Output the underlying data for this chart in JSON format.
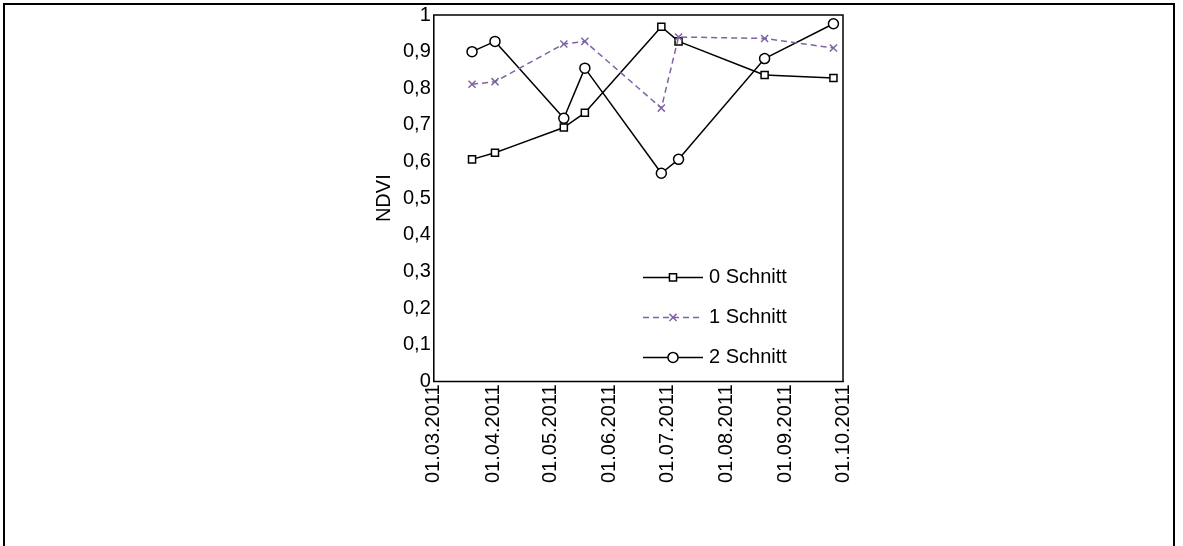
{
  "chart_data": {
    "type": "line",
    "ylabel": "NDVI",
    "x": [
      "2011-03-21",
      "2011-04-02",
      "2011-05-08",
      "2011-05-19",
      "2011-06-28",
      "2011-07-07",
      "2011-08-21",
      "2011-09-26"
    ],
    "series": [
      {
        "name": "0 Schnitt",
        "color": "#000000",
        "marker": "square",
        "line_style": "solid",
        "values": [
          0.606,
          0.624,
          0.693,
          0.733,
          0.968,
          0.928,
          0.836,
          0.828
        ]
      },
      {
        "name": "1 Schnitt",
        "color": "#8064a2",
        "marker": "cross",
        "line_style": "dashed",
        "values": [
          0.811,
          0.818,
          0.921,
          0.928,
          0.746,
          0.94,
          0.936,
          0.91
        ]
      },
      {
        "name": "2 Schnitt",
        "color": "#000000",
        "marker": "circle",
        "line_style": "solid",
        "values": [
          0.9,
          0.928,
          0.718,
          0.855,
          0.568,
          0.606,
          0.881,
          0.976
        ]
      }
    ],
    "xlim": [
      "2011-03-01",
      "2011-10-01"
    ],
    "xticks": [
      {
        "value": "2011-03-01",
        "label": "01.03.2011"
      },
      {
        "value": "2011-04-01",
        "label": "01.04.2011"
      },
      {
        "value": "2011-05-01",
        "label": "01.05.2011"
      },
      {
        "value": "2011-06-01",
        "label": "01.06.2011"
      },
      {
        "value": "2011-07-01",
        "label": "01.07.2011"
      },
      {
        "value": "2011-08-01",
        "label": "01.08.2011"
      },
      {
        "value": "2011-09-01",
        "label": "01.09.2011"
      },
      {
        "value": "2011-10-01",
        "label": "01.10.2011"
      }
    ],
    "ylim": [
      0,
      1
    ],
    "yticks": [
      {
        "value": 0,
        "label": "0"
      },
      {
        "value": 0.1,
        "label": "0,1"
      },
      {
        "value": 0.2,
        "label": "0,2"
      },
      {
        "value": 0.3,
        "label": "0,3"
      },
      {
        "value": 0.4,
        "label": "0,4"
      },
      {
        "value": 0.5,
        "label": "0,5"
      },
      {
        "value": 0.6,
        "label": "0,6"
      },
      {
        "value": 0.7,
        "label": "0,7"
      },
      {
        "value": 0.8,
        "label": "0,8"
      },
      {
        "value": 0.9,
        "label": "0,9"
      },
      {
        "value": 1,
        "label": "1"
      }
    ],
    "grid": false,
    "legend": "bottom right"
  }
}
